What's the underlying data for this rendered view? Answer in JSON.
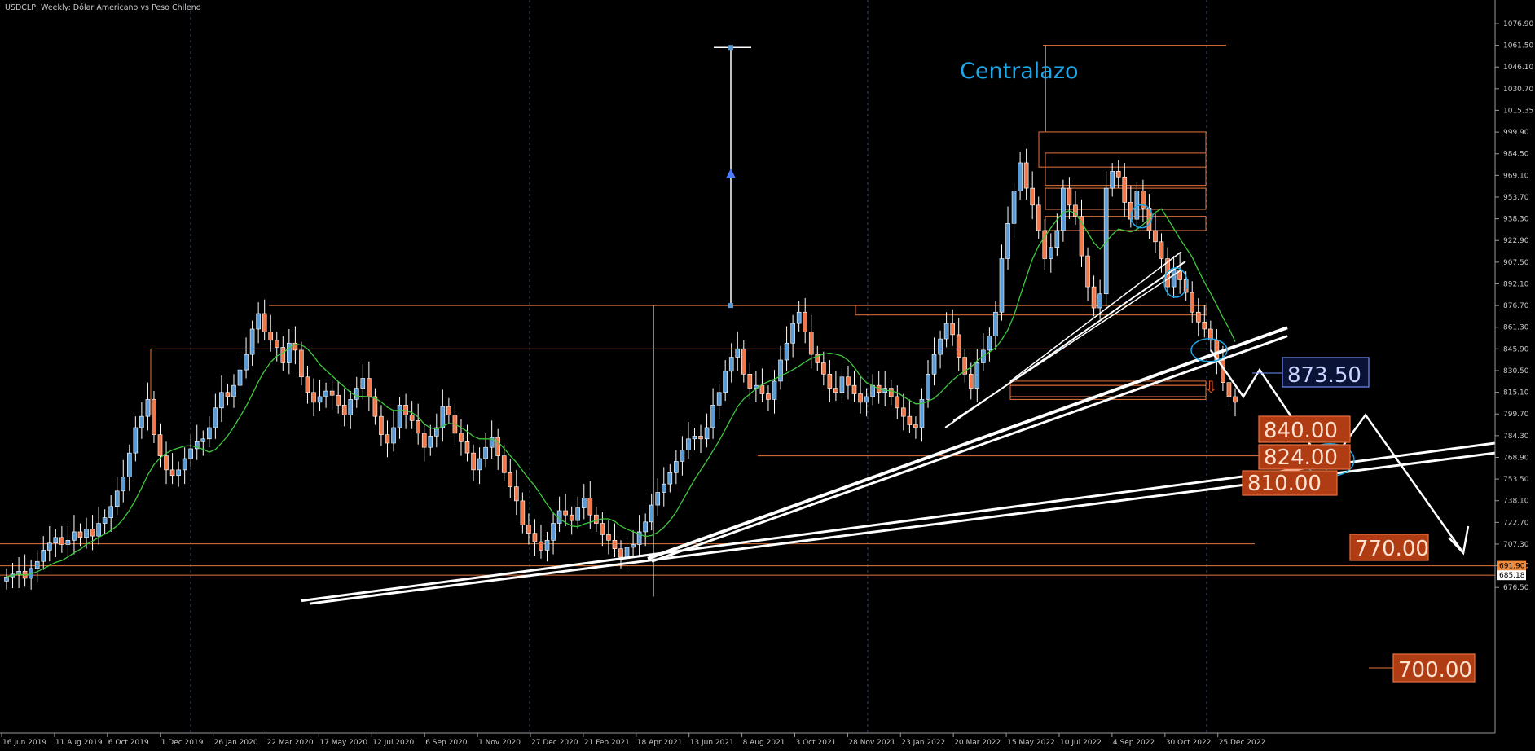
{
  "header": {
    "title": "USDCLP, Weekly:  Dólar Americano vs Peso Chileno"
  },
  "annotation": {
    "text": "Centralazo",
    "color": "#1ea7e8"
  },
  "colors": {
    "bull": "#5b9bd5",
    "bear": "#f0784a",
    "ma": "#3ec93e",
    "level": "#e8743b",
    "trend": "#ffffff",
    "grid": "#2f4f6f",
    "text": "#c9c9c9"
  },
  "chart_data": {
    "type": "candlestick",
    "symbol": "USDCLP",
    "timeframe": "Weekly",
    "ylim": [
      665,
      1090
    ],
    "y_ticks": [
      "1076.90",
      "1061.50",
      "1046.10",
      "1030.70",
      "1015.35",
      "999.90",
      "984.50",
      "969.10",
      "953.70",
      "938.30",
      "922.90",
      "907.50",
      "892.10",
      "876.70",
      "861.30",
      "845.90",
      "830.50",
      "815.10",
      "799.70",
      "784.30",
      "768.90",
      "753.50",
      "738.10",
      "722.70",
      "707.30",
      "691.90",
      "676.50"
    ],
    "x_ticks": [
      "16 Jun 2019",
      "11 Aug 2019",
      "6 Oct 2019",
      "1 Dec 2019",
      "26 Jan 2020",
      "22 Mar 2020",
      "17 May 2020",
      "12 Jul 2020",
      "6 Sep 2020",
      "1 Nov 2020",
      "27 Dec 2020",
      "21 Feb 2021",
      "18 Apr 2021",
      "13 Jun 2021",
      "8 Aug 2021",
      "3 Oct 2021",
      "28 Nov 2021",
      "23 Jan 2022",
      "20 Mar 2022",
      "15 May 2022",
      "10 Jul 2022",
      "4 Sep 2022",
      "30 Oct 2022",
      "25 Dec 2022"
    ],
    "price_markers": [
      "691.90",
      "685.18"
    ],
    "closes": [
      684,
      686,
      688,
      683,
      690,
      695,
      703,
      708,
      712,
      707,
      710,
      716,
      712,
      718,
      713,
      722,
      726,
      734,
      745,
      755,
      772,
      790,
      798,
      810,
      785,
      770,
      760,
      756,
      760,
      768,
      775,
      780,
      782,
      790,
      804,
      815,
      812,
      820,
      831,
      842,
      860,
      871,
      858,
      852,
      847,
      836,
      850,
      845,
      826,
      815,
      808,
      812,
      816,
      813,
      806,
      799,
      810,
      818,
      825,
      812,
      798,
      785,
      779,
      790,
      806,
      799,
      795,
      786,
      776,
      784,
      790,
      805,
      799,
      786,
      780,
      772,
      760,
      768,
      776,
      783,
      770,
      758,
      748,
      738,
      721,
      715,
      709,
      703,
      710,
      722,
      731,
      728,
      724,
      733,
      740,
      728,
      722,
      714,
      710,
      704,
      698,
      705,
      707,
      716,
      723,
      735,
      744,
      750,
      758,
      766,
      774,
      782,
      784,
      782,
      790,
      806,
      815,
      830,
      840,
      846,
      828,
      818,
      820,
      814,
      810,
      823,
      838,
      850,
      864,
      872,
      858,
      842,
      836,
      828,
      818,
      815,
      826,
      820,
      814,
      808,
      812,
      820,
      815,
      818,
      812,
      804,
      798,
      792,
      790,
      810,
      828,
      842,
      853,
      864,
      856,
      840,
      828,
      818,
      836,
      845,
      855,
      872,
      910,
      935,
      958,
      978,
      960,
      948,
      930,
      910,
      918,
      930,
      960,
      948,
      940,
      912,
      890,
      875,
      885,
      960,
      972,
      968,
      950,
      938,
      958,
      946,
      930,
      922,
      910,
      890,
      902,
      895,
      886,
      872,
      865,
      860,
      852,
      838,
      822,
      812,
      808
    ]
  }
}
